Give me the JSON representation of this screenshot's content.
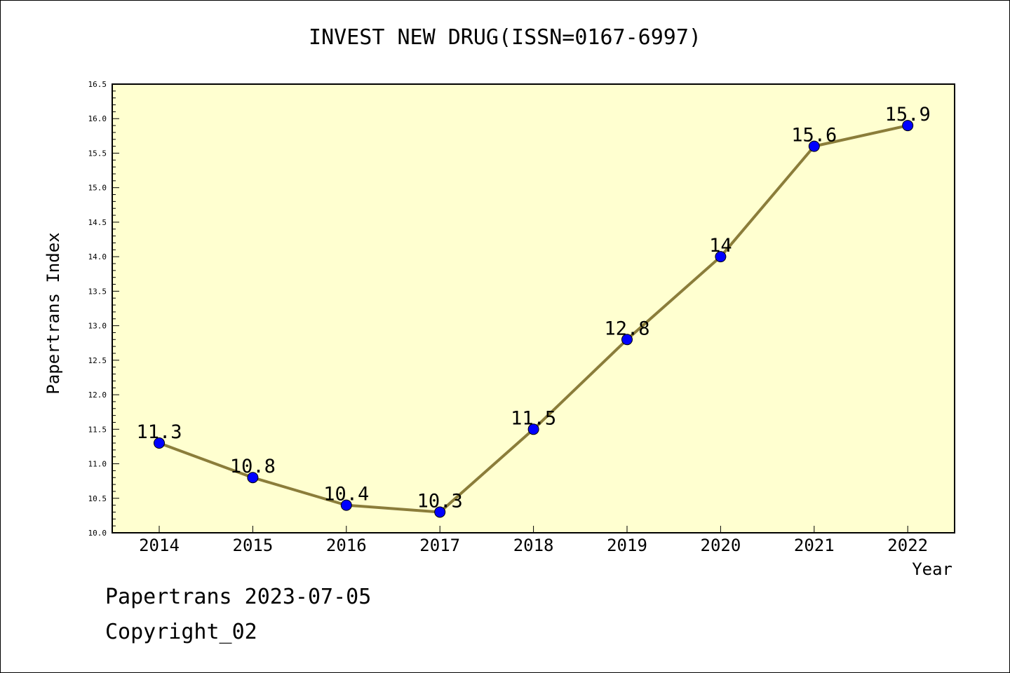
{
  "chart_data": {
    "type": "line",
    "title": "INVEST NEW DRUG(ISSN=0167-6997)",
    "xlabel": "Year",
    "ylabel": "Papertrans Index",
    "categories": [
      "2014",
      "2015",
      "2016",
      "2017",
      "2018",
      "2019",
      "2020",
      "2021",
      "2022"
    ],
    "series": [
      {
        "values": [
          11.3,
          10.8,
          10.4,
          10.3,
          11.5,
          12.8,
          14,
          15.6,
          15.9
        ],
        "labels": [
          "11.3",
          "10.8",
          "10.4",
          "10.3",
          "11.5",
          "12.8",
          "14",
          "15.6",
          "15.9"
        ]
      }
    ],
    "ylim": [
      10.0,
      16.5
    ],
    "yticks": [
      "10.0",
      "10.5",
      "11.0",
      "11.5",
      "12.0",
      "12.5",
      "13.0",
      "13.5",
      "14.0",
      "14.5",
      "15.0",
      "15.5",
      "16.0",
      "16.5"
    ],
    "grid": false,
    "colors": {
      "plot_background": "#ffffd0",
      "line": "#8b7d3a",
      "marker": "#0000ff"
    }
  },
  "footer": {
    "date_line": "Papertrans 2023-07-05",
    "copyright": "Copyright_02"
  }
}
